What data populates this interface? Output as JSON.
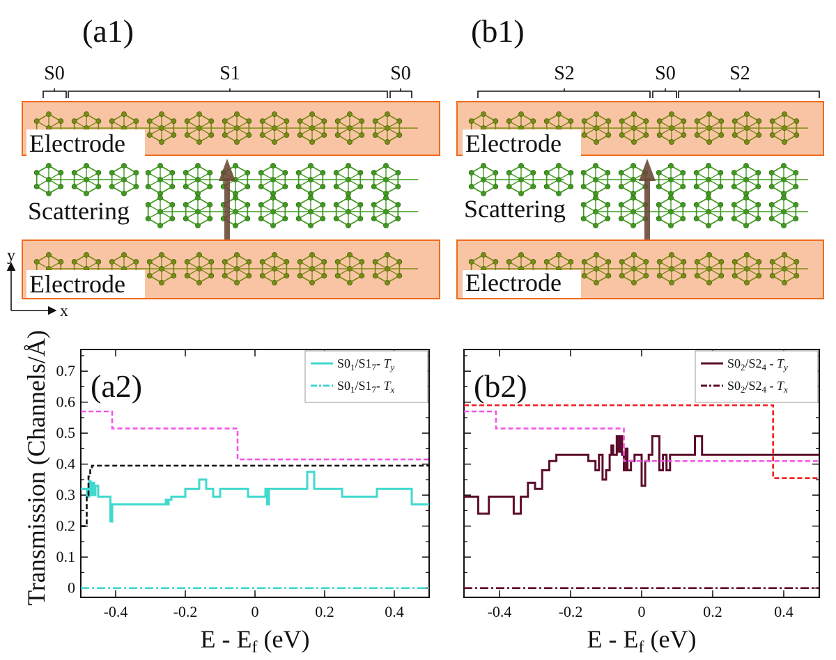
{
  "panels": {
    "a1": {
      "label": "(a1)",
      "segments": [
        "S0",
        "S1",
        "S0"
      ],
      "electrode_top": "Electrode",
      "scattering": "Scattering",
      "electrode_bottom": "Electrode"
    },
    "b1": {
      "label": "(b1)",
      "segments": [
        "S2",
        "S0",
        "S2"
      ],
      "electrode_top": "Electrode",
      "scattering": "Scattering",
      "electrode_bottom": "Electrode"
    }
  },
  "axes_glyph": {
    "x": "x",
    "y": "y"
  },
  "colors": {
    "electrode_fill": "#f9c4a4",
    "electrode_border": "#f06a1c",
    "atom_green": "#3e9a1e",
    "atom_olive": "#7b8a12",
    "arrow": "#6b4a3a",
    "cyan": "#40d9cf",
    "magenta_dash": "#f355e8",
    "black_dash": "#111111",
    "maroon": "#5c0d2c",
    "red_dash": "#f22020"
  },
  "chart_data": [
    {
      "panel": "(a2)",
      "type": "line",
      "xlabel": "E - E_f (eV)",
      "ylabel": "Transmission (Channels/Å)",
      "xlim": [
        -0.5,
        0.5
      ],
      "ylim": [
        -0.03,
        0.77
      ],
      "xticks": [
        "-0.4",
        "-0.2",
        "0",
        "0.2",
        "0.4"
      ],
      "xtick_values": [
        -0.4,
        -0.2,
        0,
        0.2,
        0.4
      ],
      "yticks": [
        "0",
        "0.1",
        "0.2",
        "0.3",
        "0.4",
        "0.5",
        "0.6",
        "0.7"
      ],
      "ytick_values": [
        0,
        0.1,
        0.2,
        0.3,
        0.4,
        0.5,
        0.6,
        0.7
      ],
      "legend": [
        {
          "base": "S0",
          "sub1": "1",
          "mid": "/S1",
          "sub2": "7",
          "sep": "- ",
          "T": "T",
          "Tsub": "y",
          "style": "solid",
          "color": "#40d9cf"
        },
        {
          "base": "S0",
          "sub1": "1",
          "mid": "/S1",
          "sub2": "7",
          "sep": "- ",
          "T": "T",
          "Tsub": "x",
          "style": "dashdot",
          "color": "#40d9cf"
        }
      ],
      "series": [
        {
          "name": "S0_1/S1_7 - T_y",
          "style": "solid",
          "color": "#40d9cf",
          "step": true,
          "x": [
            -0.5,
            -0.482,
            -0.476,
            -0.472,
            -0.468,
            -0.462,
            -0.458,
            -0.45,
            -0.43,
            -0.415,
            -0.41,
            -0.4,
            -0.3,
            -0.26,
            -0.256,
            -0.252,
            -0.248,
            -0.24,
            -0.2,
            -0.16,
            -0.14,
            -0.12,
            -0.1,
            -0.06,
            -0.02,
            0.0,
            0.03,
            0.035,
            0.04,
            0.05,
            0.1,
            0.15,
            0.17,
            0.2,
            0.25,
            0.3,
            0.35,
            0.4,
            0.45,
            0.47,
            0.5
          ],
          "y": [
            0.32,
            0.295,
            0.345,
            0.3,
            0.34,
            0.3,
            0.33,
            0.295,
            0.295,
            0.215,
            0.27,
            0.27,
            0.27,
            0.27,
            0.285,
            0.27,
            0.285,
            0.295,
            0.32,
            0.35,
            0.32,
            0.295,
            0.32,
            0.32,
            0.295,
            0.295,
            0.32,
            0.27,
            0.32,
            0.32,
            0.32,
            0.375,
            0.32,
            0.32,
            0.295,
            0.295,
            0.32,
            0.32,
            0.27,
            0.27,
            0.27
          ]
        },
        {
          "name": "S0_1/S1_7 - T_x",
          "style": "dashdot",
          "color": "#40d9cf",
          "step": true,
          "x": [
            -0.5,
            0.5
          ],
          "y": [
            0.0,
            0.0
          ]
        },
        {
          "name": "magenta reference",
          "style": "dash",
          "color": "#f355e8",
          "step": true,
          "x": [
            -0.5,
            -0.41,
            -0.05,
            0.5
          ],
          "y": [
            0.57,
            0.515,
            0.415,
            0.41
          ]
        },
        {
          "name": "black reference",
          "style": "dash",
          "color": "#111111",
          "step": true,
          "x": [
            -0.5,
            -0.483,
            -0.478,
            -0.473,
            -0.468,
            0.5
          ],
          "y": [
            0.2,
            0.3,
            0.36,
            0.385,
            0.395,
            0.395
          ]
        }
      ]
    },
    {
      "panel": "(b2)",
      "type": "line",
      "xlabel": "E - E_f (eV)",
      "ylabel": "",
      "xlim": [
        -0.5,
        0.5
      ],
      "ylim": [
        -0.03,
        0.77
      ],
      "xticks": [
        "-0.4",
        "-0.2",
        "0",
        "0.2",
        "0.4"
      ],
      "xtick_values": [
        -0.4,
        -0.2,
        0,
        0.2,
        0.4
      ],
      "yticks": [],
      "ytick_values": [
        0,
        0.1,
        0.2,
        0.3,
        0.4,
        0.5,
        0.6,
        0.7
      ],
      "legend": [
        {
          "base": "S0",
          "sub1": "2",
          "mid": "/S2",
          "sub2": "4",
          "sep": " - ",
          "T": "T",
          "Tsub": "y",
          "style": "solid",
          "color": "#5c0d2c"
        },
        {
          "base": "S0",
          "sub1": "2",
          "mid": "/S2",
          "sub2": "4",
          "sep": " - ",
          "T": "T",
          "Tsub": "x",
          "style": "dashdot",
          "color": "#5c0d2c"
        }
      ],
      "series": [
        {
          "name": "S0_2/S2_4 - T_y",
          "style": "solid",
          "color": "#5c0d2c",
          "step": true,
          "x": [
            -0.5,
            -0.46,
            -0.43,
            -0.4,
            -0.36,
            -0.34,
            -0.32,
            -0.3,
            -0.28,
            -0.26,
            -0.24,
            -0.2,
            -0.15,
            -0.13,
            -0.12,
            -0.11,
            -0.1,
            -0.09,
            -0.085,
            -0.08,
            -0.07,
            -0.065,
            -0.06,
            -0.055,
            -0.05,
            -0.045,
            -0.04,
            -0.03,
            -0.02,
            0.0,
            0.01,
            0.02,
            0.03,
            0.05,
            0.06,
            0.07,
            0.08,
            0.1,
            0.15,
            0.17,
            0.2,
            0.3,
            0.4,
            0.5
          ],
          "y": [
            0.295,
            0.24,
            0.295,
            0.295,
            0.24,
            0.295,
            0.34,
            0.32,
            0.38,
            0.41,
            0.43,
            0.43,
            0.41,
            0.38,
            0.43,
            0.35,
            0.38,
            0.43,
            0.46,
            0.43,
            0.49,
            0.44,
            0.49,
            0.43,
            0.38,
            0.45,
            0.38,
            0.41,
            0.43,
            0.33,
            0.41,
            0.43,
            0.49,
            0.38,
            0.43,
            0.38,
            0.43,
            0.43,
            0.49,
            0.43,
            0.43,
            0.43,
            0.43,
            0.43
          ]
        },
        {
          "name": "S0_2/S2_4 - T_x",
          "style": "dashdot",
          "color": "#5c0d2c",
          "step": true,
          "x": [
            -0.5,
            0.5
          ],
          "y": [
            0.0,
            0.0
          ]
        },
        {
          "name": "magenta reference",
          "style": "dash",
          "color": "#f355e8",
          "step": true,
          "x": [
            -0.5,
            -0.41,
            -0.05,
            0.5
          ],
          "y": [
            0.57,
            0.515,
            0.41,
            0.41
          ]
        },
        {
          "name": "red reference",
          "style": "dash",
          "color": "#f22020",
          "step": true,
          "x": [
            -0.5,
            0.355,
            0.37,
            0.5
          ],
          "y": [
            0.59,
            0.59,
            0.355,
            0.355
          ]
        }
      ]
    }
  ]
}
